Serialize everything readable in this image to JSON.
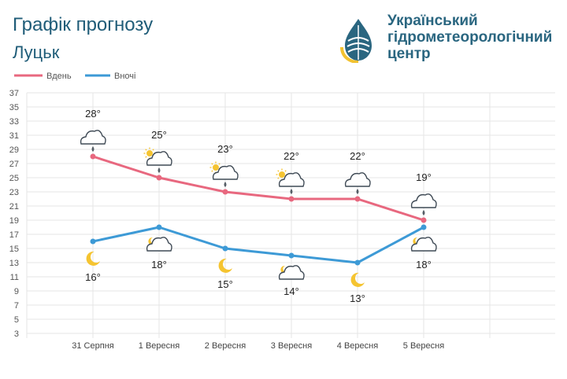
{
  "header": {
    "title": "Графік прогнозу",
    "city": "Луцьк",
    "org_lines": [
      "Український",
      "гідрометеорологічний",
      "центр"
    ]
  },
  "colors": {
    "day": "#e8687f",
    "night": "#3d9ad6",
    "grid": "#e5e5e5",
    "title": "#1f5c78"
  },
  "chart_data": {
    "type": "line",
    "categories": [
      "31 Серпня",
      "1 Вересня",
      "2 Вересня",
      "3 Вересня",
      "4 Вересня",
      "5 Вересня"
    ],
    "ylim": [
      3,
      37
    ],
    "yticks": [
      3,
      5,
      7,
      9,
      11,
      13,
      15,
      17,
      19,
      21,
      23,
      25,
      27,
      29,
      31,
      33,
      35,
      37
    ],
    "grid": true,
    "legend": "top-left",
    "series": [
      {
        "name": "Вдень",
        "values": [
          28,
          25,
          23,
          22,
          22,
          19
        ],
        "labels": [
          "28°",
          "25°",
          "23°",
          "22°",
          "22°",
          "19°"
        ],
        "icons": [
          "cloud-rain-icon",
          "sun-cloud-rain-icon",
          "sun-cloud-rain-icon",
          "sun-cloud-rain-icon",
          "cloud-rain-icon",
          "cloud-rain-icon"
        ]
      },
      {
        "name": "Вночі",
        "values": [
          16,
          18,
          15,
          14,
          13,
          18
        ],
        "labels": [
          "16°",
          "18°",
          "15°",
          "14°",
          "13°",
          "18°"
        ],
        "icons": [
          "moon-icon",
          "moon-cloud-icon",
          "moon-icon",
          "moon-cloud-icon",
          "moon-icon",
          "moon-cloud-icon"
        ]
      }
    ]
  }
}
